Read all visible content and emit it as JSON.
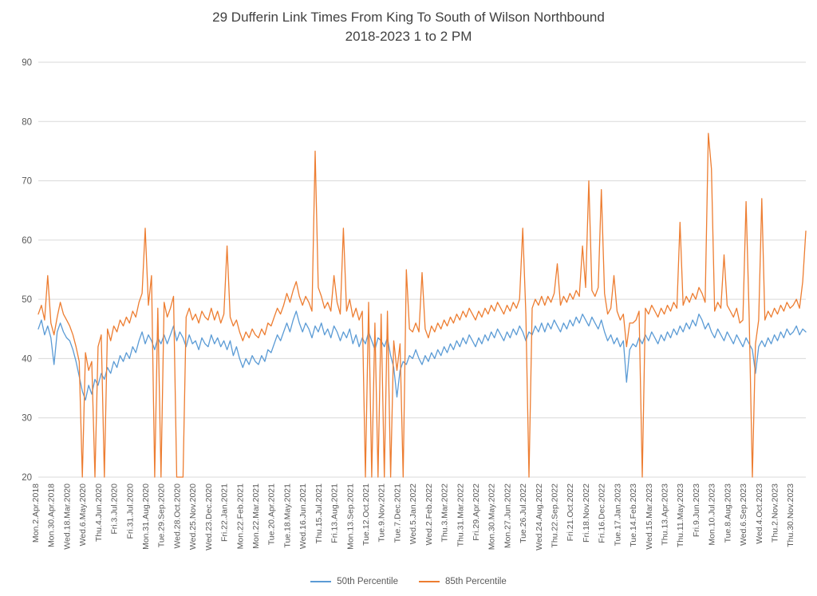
{
  "title": {
    "line1": "29 Dufferin Link Times From King To South of Wilson Northbound",
    "line2": "2018-2023 1 to 2 PM"
  },
  "colors": {
    "series_50th": "#5B9BD5",
    "series_85th": "#ED7D31",
    "gridline": "#D9D9D9",
    "axis_text": "#595959",
    "title_text": "#404040",
    "background": "#FFFFFF"
  },
  "legend": {
    "items": [
      {
        "label": "50th Percentile",
        "color": "#5B9BD5"
      },
      {
        "label": "85th Percentile",
        "color": "#ED7D31"
      }
    ],
    "position": "bottom"
  },
  "chart_data": {
    "type": "line",
    "title": "29 Dufferin Link Times From King To South of Wilson Northbound 2018-2023 1 to 2 PM",
    "xlabel": "",
    "ylabel": "",
    "ylim": [
      20,
      90
    ],
    "y_ticks": [
      20,
      30,
      40,
      50,
      60,
      70,
      80,
      90
    ],
    "grid": "horizontal",
    "legend_position": "bottom",
    "ticks_every_n_points": 5,
    "x_tick_labels": [
      "Mon.2.Apr.2018",
      "Mon.30.Apr.2018",
      "Wed.18.Mar.2020",
      "Wed.6.May.2020",
      "Thu.4.Jun.2020",
      "Fri.3.Jul.2020",
      "Fri.31.Jul.2020",
      "Mon.31.Aug.2020",
      "Tue.29.Sep.2020",
      "Wed.28.Oct.2020",
      "Wed.25.Nov.2020",
      "Wed.23.Dec.2020",
      "Fri.22.Jan.2021",
      "Mon.22.Feb.2021",
      "Mon.22.Mar.2021",
      "Tue.20.Apr.2021",
      "Tue.18.May.2021",
      "Wed.16.Jun.2021",
      "Thu.15.Jul.2021",
      "Fri.13.Aug.2021",
      "Mon.13.Sep.2021",
      "Tue.12.Oct.2021",
      "Tue.9.Nov.2021",
      "Tue.7.Dec.2021",
      "Wed.5.Jan.2022",
      "Wed.2.Feb.2022",
      "Thu.3.Mar.2022",
      "Thu.31.Mar.2022",
      "Fri.29.Apr.2022",
      "Mon.30.May.2022",
      "Mon.27.Jun.2022",
      "Tue.26.Jul.2022",
      "Wed.24.Aug.2022",
      "Thu.22.Sep.2022",
      "Fri.21.Oct.2022",
      "Fri.18.Nov.2022",
      "Fri.16.Dec.2022",
      "Tue.17.Jan.2023",
      "Tue.14.Feb.2023",
      "Wed.15.Mar.2023",
      "Thu.13.Apr.2023",
      "Thu.11.May.2023",
      "Fri.9.Jun.2023",
      "Mon.10.Jul.2023",
      "Tue.8.Aug.2023",
      "Wed.6.Sep.2023",
      "Wed.4.Oct.2023",
      "Thu.2.Nov.2023",
      "Thu.30.Nov.2023"
    ],
    "series": [
      {
        "name": "50th Percentile",
        "color": "#5B9BD5",
        "values": [
          45,
          46.5,
          44,
          45.5,
          43.5,
          39,
          44.5,
          46,
          44.5,
          43.5,
          43,
          41.5,
          39.5,
          37,
          34.5,
          33,
          35.5,
          34,
          36.5,
          35.5,
          37.5,
          36.5,
          38.5,
          37.5,
          39.5,
          38.5,
          40.5,
          39.5,
          41,
          40,
          42,
          41,
          43,
          44.5,
          42.5,
          44,
          43,
          41.5,
          43.5,
          42.5,
          44,
          42.5,
          44,
          45.5,
          43,
          44.5,
          43.5,
          42,
          44,
          42.5,
          43,
          41.5,
          43.5,
          42.5,
          42,
          44,
          42.5,
          43.5,
          42,
          43,
          41.5,
          43,
          40.5,
          42,
          40,
          38.5,
          40,
          39,
          40.5,
          39.5,
          39,
          40.5,
          39.5,
          41.5,
          41,
          42.5,
          44,
          43,
          44.5,
          46,
          44.5,
          46.5,
          48,
          46,
          44.5,
          46,
          45,
          43.5,
          45.5,
          44.5,
          46,
          44,
          45,
          43.5,
          45.5,
          44.5,
          43,
          44.5,
          43.5,
          45,
          42.5,
          44,
          42,
          43.5,
          42.5,
          44.5,
          43,
          41.5,
          43.5,
          43,
          42,
          43.5,
          40.5,
          38.5,
          33.5,
          38,
          39.5,
          39,
          40.5,
          40,
          41.5,
          40,
          39,
          40.5,
          39.5,
          41,
          40,
          41.5,
          40.5,
          42,
          41,
          42.5,
          41.5,
          43,
          42,
          43.5,
          42.5,
          44,
          43,
          42,
          43.5,
          42.5,
          44,
          43,
          44.5,
          43.5,
          45,
          44,
          43,
          44.5,
          43.5,
          45,
          44,
          45.5,
          44.5,
          43,
          44.5,
          44,
          45.5,
          44.5,
          46,
          44.5,
          46,
          45,
          46.5,
          45.5,
          44.5,
          46,
          45,
          46.5,
          45.5,
          47,
          46,
          47.5,
          46.5,
          45.5,
          47,
          46,
          45,
          46.5,
          44.5,
          43,
          44,
          42.5,
          43.5,
          42,
          43,
          36,
          41.5,
          42.5,
          42,
          43.5,
          42.5,
          44,
          43,
          44.5,
          43.5,
          42.5,
          44,
          43,
          44.5,
          43.5,
          45,
          44,
          45.5,
          44.5,
          46,
          45,
          46.5,
          45.5,
          47.5,
          46.5,
          45,
          46,
          44.5,
          43.5,
          45,
          44,
          43,
          44.5,
          43.5,
          42.5,
          44,
          43,
          42,
          43.5,
          42.5,
          41.5,
          37.5,
          42,
          43,
          42,
          43.5,
          42.5,
          44,
          43,
          44.5,
          43.5,
          45,
          44,
          44.5,
          45.5,
          44,
          45,
          44.5
        ]
      },
      {
        "name": "85th Percentile",
        "color": "#ED7D31",
        "values": [
          47.5,
          49,
          46.5,
          54,
          46,
          44,
          47,
          49.5,
          47.5,
          46.5,
          45.5,
          44,
          42,
          39.5,
          20,
          41,
          38,
          39.5,
          20,
          42,
          44,
          20,
          45,
          43,
          45.5,
          44.5,
          46.5,
          45.5,
          47,
          46,
          48,
          47,
          49.5,
          51,
          62,
          49,
          54,
          20,
          48.5,
          20,
          49.5,
          47,
          48.5,
          50.5,
          20,
          20,
          20,
          47,
          48.5,
          46.5,
          47.5,
          46,
          48,
          47,
          46.5,
          48.5,
          46.5,
          48,
          46,
          47.5,
          59,
          47,
          45.5,
          46.5,
          44.5,
          43,
          44.5,
          43.5,
          45,
          44,
          43.5,
          45,
          44,
          46,
          45.5,
          47,
          48.5,
          47.5,
          49,
          51,
          49.5,
          51.5,
          53,
          50.5,
          49,
          50.5,
          49.5,
          48,
          75,
          52,
          50.5,
          48.5,
          49.5,
          48,
          54,
          49.5,
          47.5,
          62,
          48,
          50,
          47,
          48.5,
          46.5,
          48,
          20,
          49.5,
          20,
          46,
          20,
          47.5,
          20,
          48,
          20,
          43,
          38,
          42.5,
          20,
          55,
          45,
          44.5,
          46,
          44.5,
          54.5,
          45,
          43.5,
          45.5,
          44.5,
          46,
          45,
          46.5,
          45.5,
          47,
          46,
          47.5,
          46.5,
          48,
          47,
          48.5,
          47.5,
          46.5,
          48,
          47,
          48.5,
          47.5,
          49,
          48,
          49.5,
          48.5,
          47.5,
          49,
          48,
          49.5,
          48.5,
          50,
          62,
          47.5,
          20,
          48.5,
          50,
          49,
          50.5,
          49,
          50.5,
          49.5,
          51,
          56,
          49,
          50.5,
          49.5,
          51,
          50,
          51.5,
          50.5,
          59,
          52,
          70,
          51.5,
          50.5,
          52,
          68.5,
          51,
          47.5,
          48.5,
          54,
          48,
          46.5,
          47.5,
          42,
          46,
          46,
          46.5,
          48,
          20,
          48.5,
          47.5,
          49,
          48,
          47,
          48.5,
          47.5,
          49,
          48,
          49.5,
          48.5,
          63,
          49,
          50.5,
          49.5,
          51,
          50,
          52,
          51,
          49.5,
          78,
          72,
          48,
          49.5,
          48.5,
          57.5,
          49,
          48,
          47,
          48.5,
          46,
          46.5,
          66.5,
          47,
          20,
          42.5,
          46.5,
          67,
          46.5,
          48,
          47,
          48.5,
          47.5,
          49,
          48,
          49.5,
          48.5,
          49,
          50,
          48.5,
          53,
          61.5
        ]
      }
    ]
  }
}
